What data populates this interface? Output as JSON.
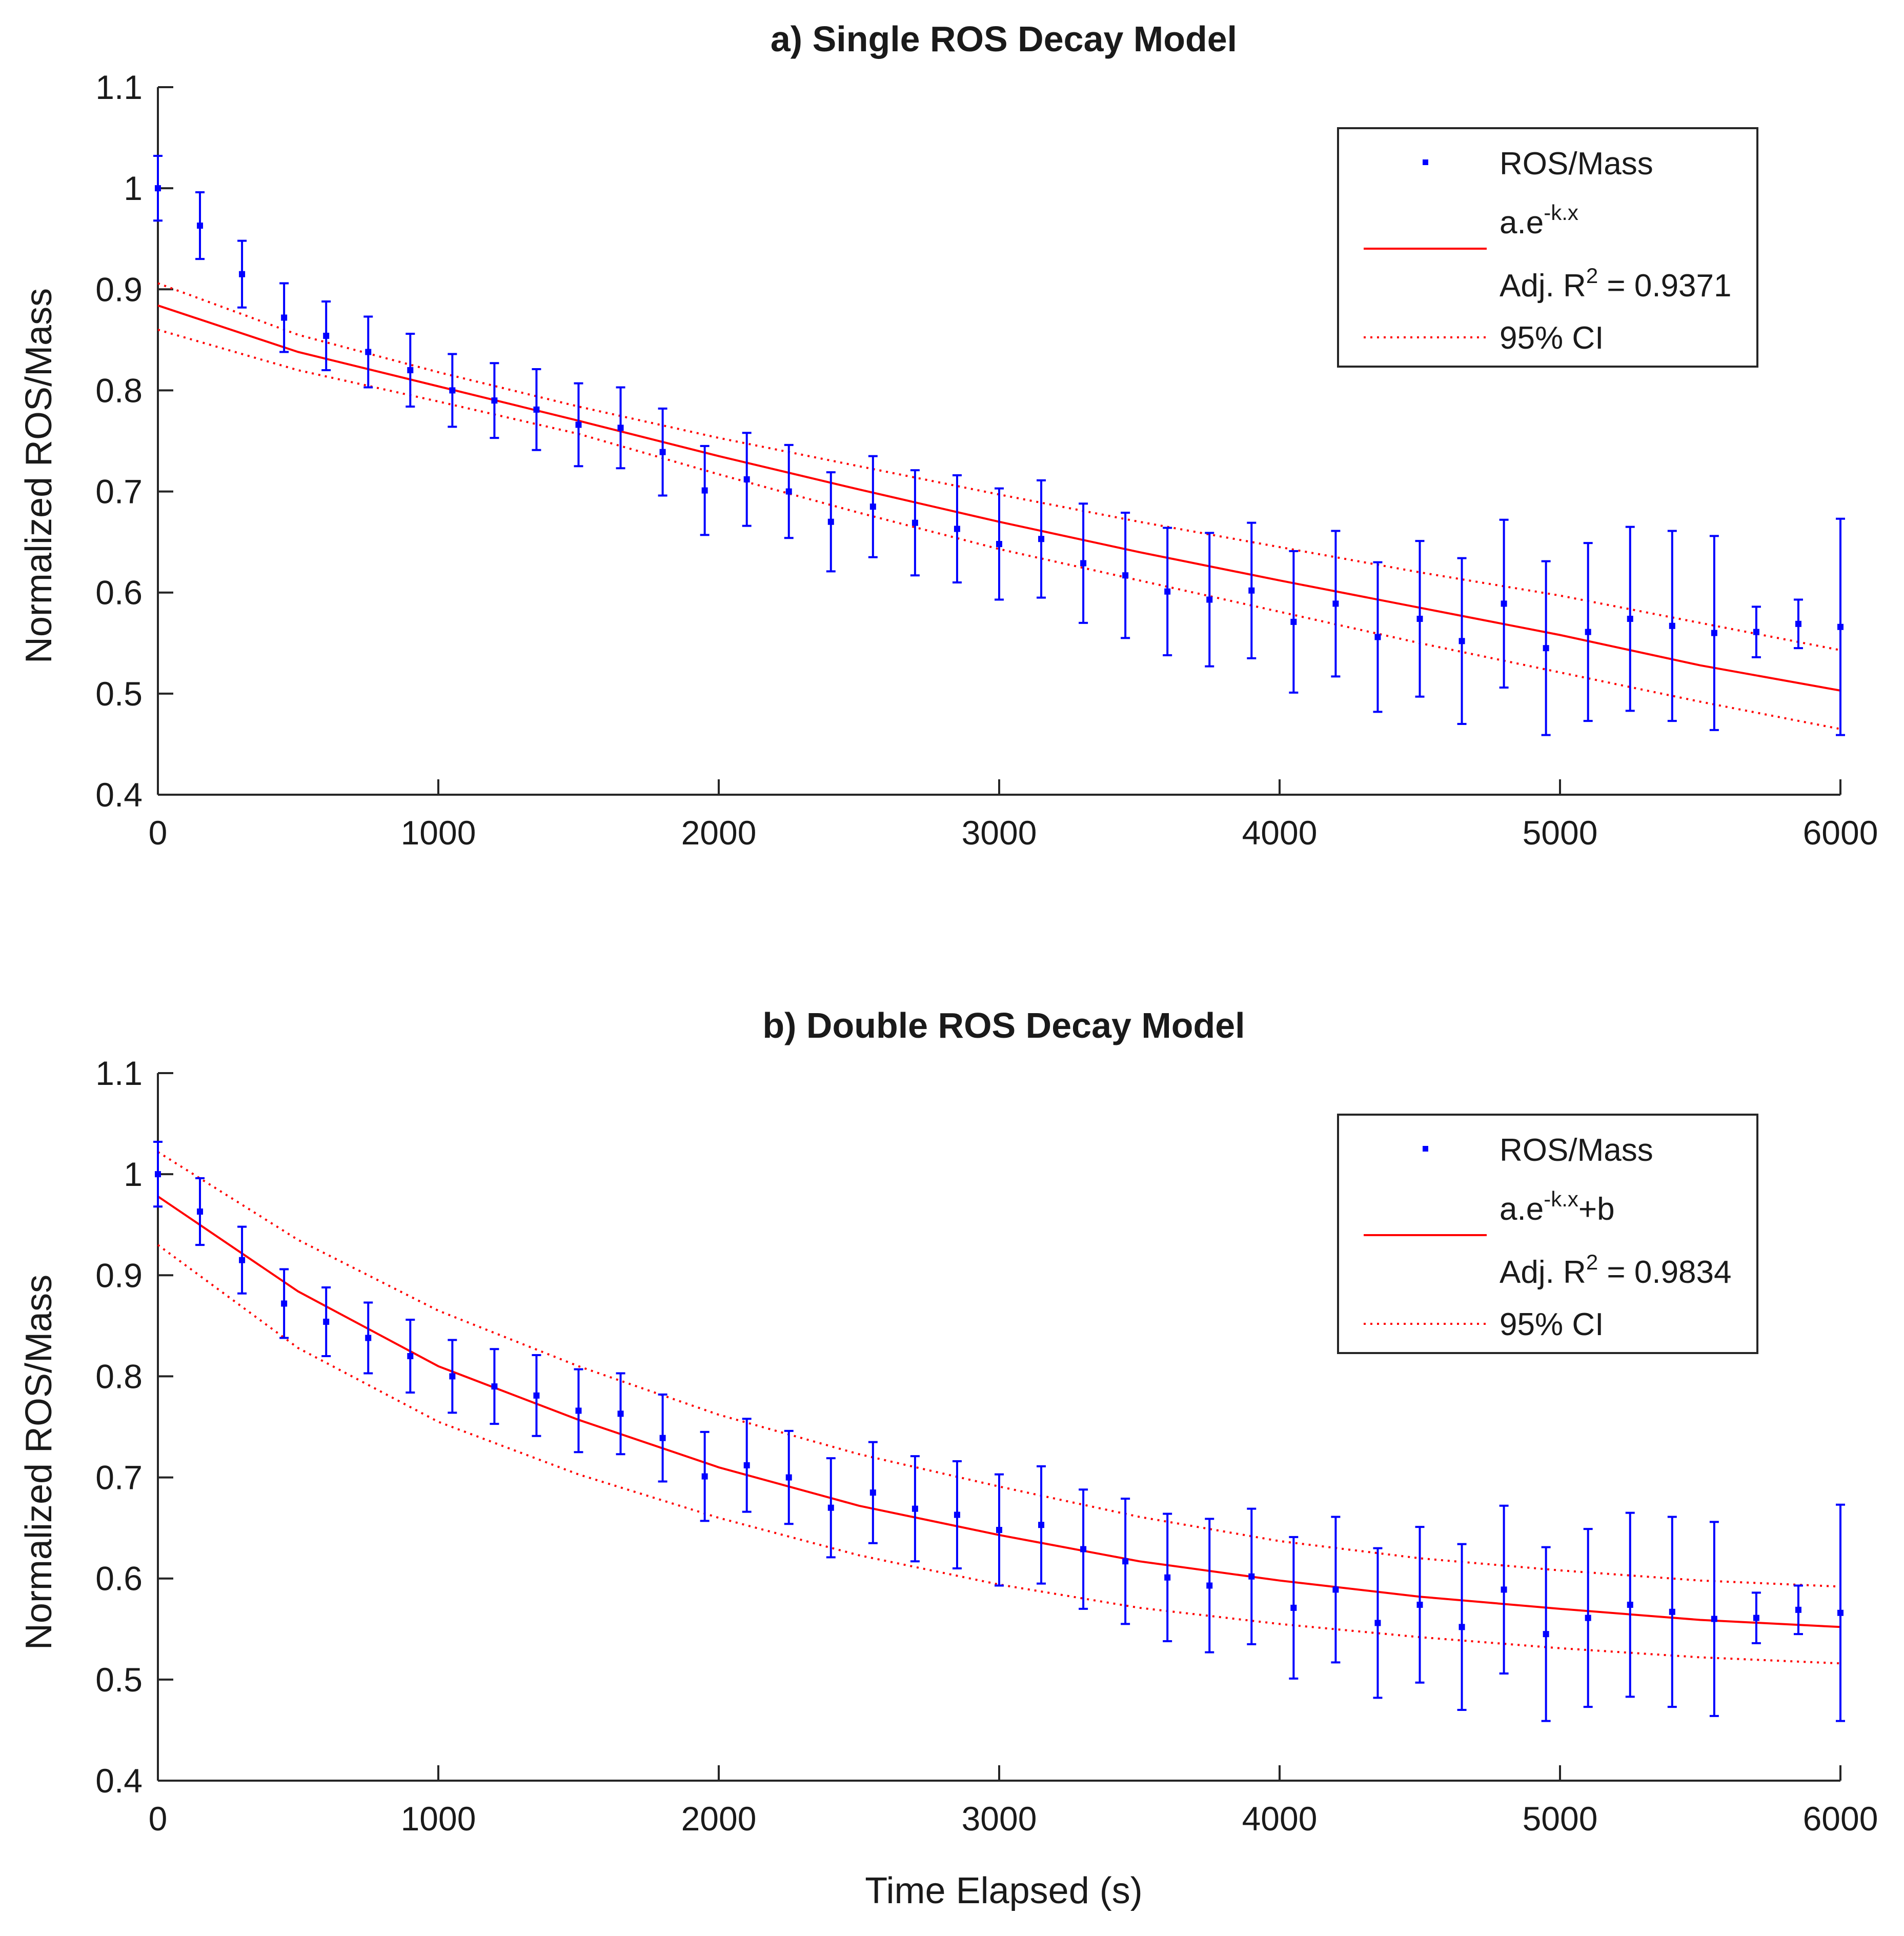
{
  "figure": {
    "xlabel_shared": "Time Elapsed (s)"
  },
  "chart_data": [
    {
      "id": "a",
      "type": "scatter",
      "title": "a) Single ROS Decay Model",
      "xlabel": "",
      "ylabel": "Normalized ROS/Mass",
      "xlim": [
        0,
        6000
      ],
      "ylim": [
        0.4,
        1.1
      ],
      "xticks": [
        0,
        1000,
        2000,
        3000,
        4000,
        5000,
        6000
      ],
      "xtick_labels": [
        "0",
        "1000",
        "2000",
        "3000",
        "4000",
        "5000",
        "6000"
      ],
      "yticks": [
        0.4,
        0.5,
        0.6,
        0.7,
        0.8,
        0.9,
        1.0,
        1.1
      ],
      "ytick_labels": [
        "0.4",
        "0.5",
        "0.6",
        "0.7",
        "0.8",
        "0.9",
        "1",
        "1.1"
      ],
      "grid": false,
      "legend_position": "top-right",
      "legend": {
        "data": "ROS/Mass",
        "fit_base": "a.e",
        "fit_sup": "-k.x",
        "fit_suffix": "",
        "adj_r2_prefix": "Adj. R",
        "adj_r2_sup": "2",
        "adj_r2_suffix": " = 0.9371",
        "ci": "95% CI"
      },
      "series": [
        {
          "name": "ROS/Mass",
          "kind": "points_with_errorbars",
          "color": "#0000ff",
          "x": [
            0,
            150,
            300,
            450,
            600,
            750,
            900,
            1050,
            1200,
            1350,
            1500,
            1650,
            1800,
            1950,
            2100,
            2250,
            2400,
            2550,
            2700,
            2850,
            3000,
            3150,
            3300,
            3450,
            3600,
            3750,
            3900,
            4050,
            4200,
            4350,
            4500,
            4650,
            4800,
            4950,
            5100,
            5250,
            5400,
            5550,
            5700,
            5850,
            6000
          ],
          "y": [
            1.0,
            0.963,
            0.915,
            0.872,
            0.854,
            0.838,
            0.82,
            0.8,
            0.79,
            0.781,
            0.766,
            0.763,
            0.739,
            0.701,
            0.712,
            0.7,
            0.67,
            0.685,
            0.669,
            0.663,
            0.648,
            0.653,
            0.629,
            0.617,
            0.601,
            0.593,
            0.602,
            0.571,
            0.589,
            0.556,
            0.574,
            0.552,
            0.589,
            0.545,
            0.561,
            0.574,
            0.567,
            0.56,
            0.561,
            0.569,
            0.566
          ],
          "err": [
            0.032,
            0.033,
            0.033,
            0.034,
            0.034,
            0.035,
            0.036,
            0.036,
            0.037,
            0.04,
            0.041,
            0.04,
            0.043,
            0.044,
            0.046,
            0.046,
            0.049,
            0.05,
            0.052,
            0.053,
            0.055,
            0.058,
            0.059,
            0.062,
            0.063,
            0.066,
            0.067,
            0.07,
            0.072,
            0.074,
            0.077,
            0.082,
            0.083,
            0.086,
            0.088,
            0.091,
            0.094,
            0.096,
            0.025,
            0.024,
            0.107
          ]
        },
        {
          "name": "a.e^-k.x",
          "kind": "fit_line",
          "color": "#ff0000",
          "style": "solid",
          "x": [
            0,
            500,
            1000,
            1500,
            2000,
            2500,
            3000,
            3500,
            4000,
            4500,
            5000,
            5500,
            6000
          ],
          "y": [
            0.884,
            0.838,
            0.804,
            0.77,
            0.735,
            0.702,
            0.67,
            0.64,
            0.612,
            0.585,
            0.558,
            0.528,
            0.503
          ]
        },
        {
          "name": "95% CI upper",
          "kind": "ci_line",
          "color": "#ff0000",
          "style": "dotted",
          "x": [
            0,
            500,
            1000,
            1500,
            2000,
            2500,
            3000,
            3500,
            4000,
            4500,
            5000,
            5500,
            6000
          ],
          "y": [
            0.906,
            0.855,
            0.818,
            0.784,
            0.753,
            0.725,
            0.697,
            0.67,
            0.645,
            0.62,
            0.597,
            0.57,
            0.543
          ]
        },
        {
          "name": "95% CI lower",
          "kind": "ci_line",
          "color": "#ff0000",
          "style": "dotted",
          "x": [
            0,
            500,
            1000,
            1500,
            2000,
            2500,
            3000,
            3500,
            4000,
            4500,
            5000,
            5500,
            6000
          ],
          "y": [
            0.86,
            0.82,
            0.789,
            0.757,
            0.717,
            0.679,
            0.643,
            0.612,
            0.581,
            0.55,
            0.521,
            0.492,
            0.465
          ]
        }
      ]
    },
    {
      "id": "b",
      "type": "scatter",
      "title": "b) Double ROS Decay Model",
      "xlabel": "Time Elapsed (s)",
      "ylabel": "Normalized ROS/Mass",
      "xlim": [
        0,
        6000
      ],
      "ylim": [
        0.4,
        1.1
      ],
      "xticks": [
        0,
        1000,
        2000,
        3000,
        4000,
        5000,
        6000
      ],
      "xtick_labels": [
        "0",
        "1000",
        "2000",
        "3000",
        "4000",
        "5000",
        "6000"
      ],
      "yticks": [
        0.4,
        0.5,
        0.6,
        0.7,
        0.8,
        0.9,
        1.0,
        1.1
      ],
      "ytick_labels": [
        "0.4",
        "0.5",
        "0.6",
        "0.7",
        "0.8",
        "0.9",
        "1",
        "1.1"
      ],
      "grid": false,
      "legend_position": "top-right",
      "legend": {
        "data": "ROS/Mass",
        "fit_base": "a.e",
        "fit_sup": "-k.x",
        "fit_suffix": "+b",
        "adj_r2_prefix": "Adj. R",
        "adj_r2_sup": "2",
        "adj_r2_suffix": " = 0.9834",
        "ci": "95% CI"
      },
      "series": [
        {
          "name": "ROS/Mass",
          "kind": "points_with_errorbars",
          "color": "#0000ff",
          "x": [
            0,
            150,
            300,
            450,
            600,
            750,
            900,
            1050,
            1200,
            1350,
            1500,
            1650,
            1800,
            1950,
            2100,
            2250,
            2400,
            2550,
            2700,
            2850,
            3000,
            3150,
            3300,
            3450,
            3600,
            3750,
            3900,
            4050,
            4200,
            4350,
            4500,
            4650,
            4800,
            4950,
            5100,
            5250,
            5400,
            5550,
            5700,
            5850,
            6000
          ],
          "y": [
            1.0,
            0.963,
            0.915,
            0.872,
            0.854,
            0.838,
            0.82,
            0.8,
            0.79,
            0.781,
            0.766,
            0.763,
            0.739,
            0.701,
            0.712,
            0.7,
            0.67,
            0.685,
            0.669,
            0.663,
            0.648,
            0.653,
            0.629,
            0.617,
            0.601,
            0.593,
            0.602,
            0.571,
            0.589,
            0.556,
            0.574,
            0.552,
            0.589,
            0.545,
            0.561,
            0.574,
            0.567,
            0.56,
            0.561,
            0.569,
            0.566
          ],
          "err": [
            0.032,
            0.033,
            0.033,
            0.034,
            0.034,
            0.035,
            0.036,
            0.036,
            0.037,
            0.04,
            0.041,
            0.04,
            0.043,
            0.044,
            0.046,
            0.046,
            0.049,
            0.05,
            0.052,
            0.053,
            0.055,
            0.058,
            0.059,
            0.062,
            0.063,
            0.066,
            0.067,
            0.07,
            0.072,
            0.074,
            0.077,
            0.082,
            0.083,
            0.086,
            0.088,
            0.091,
            0.094,
            0.096,
            0.025,
            0.024,
            0.107
          ]
        },
        {
          "name": "a.e^-k.x+b",
          "kind": "fit_line",
          "color": "#ff0000",
          "style": "solid",
          "x": [
            0,
            500,
            1000,
            1500,
            2000,
            2500,
            3000,
            3500,
            4000,
            4500,
            5000,
            5500,
            6000
          ],
          "y": [
            0.978,
            0.884,
            0.81,
            0.757,
            0.71,
            0.672,
            0.643,
            0.617,
            0.598,
            0.582,
            0.57,
            0.559,
            0.552
          ]
        },
        {
          "name": "95% CI upper",
          "kind": "ci_line",
          "color": "#ff0000",
          "style": "dotted",
          "x": [
            0,
            500,
            1000,
            1500,
            2000,
            2500,
            3000,
            3500,
            4000,
            4500,
            5000,
            5500,
            6000
          ],
          "y": [
            1.022,
            0.935,
            0.865,
            0.81,
            0.762,
            0.723,
            0.691,
            0.661,
            0.637,
            0.62,
            0.608,
            0.598,
            0.592
          ]
        },
        {
          "name": "95% CI lower",
          "kind": "ci_line",
          "color": "#ff0000",
          "style": "dotted",
          "x": [
            0,
            500,
            1000,
            1500,
            2000,
            2500,
            3000,
            3500,
            4000,
            4500,
            5000,
            5500,
            6000
          ],
          "y": [
            0.93,
            0.828,
            0.755,
            0.703,
            0.66,
            0.623,
            0.594,
            0.571,
            0.555,
            0.542,
            0.531,
            0.522,
            0.516
          ]
        }
      ]
    }
  ]
}
